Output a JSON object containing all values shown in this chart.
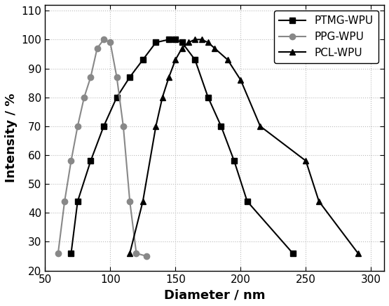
{
  "title": "",
  "xlabel": "Diameter / nm",
  "ylabel": "Intensity / %",
  "xlim": [
    50,
    310
  ],
  "ylim": [
    20,
    112
  ],
  "xticks": [
    50,
    100,
    150,
    200,
    250,
    300
  ],
  "yticks": [
    20,
    30,
    40,
    50,
    60,
    70,
    80,
    90,
    100,
    110
  ],
  "background_color": "#ffffff",
  "series": [
    {
      "label": "PTMG-WPU",
      "marker": "s",
      "color": "#000000",
      "x": [
        70,
        75,
        85,
        95,
        105,
        115,
        125,
        135,
        145,
        150,
        155,
        165,
        175,
        185,
        195,
        205,
        240
      ],
      "y": [
        26,
        44,
        58,
        70,
        80,
        87,
        93,
        99,
        100,
        100,
        99,
        93,
        80,
        70,
        58,
        44,
        26
      ]
    },
    {
      "label": "PPG-WPU",
      "marker": "o",
      "color": "#888888",
      "x": [
        60,
        65,
        70,
        75,
        80,
        85,
        90,
        95,
        100,
        105,
        110,
        115,
        120,
        128
      ],
      "y": [
        26,
        44,
        58,
        70,
        80,
        87,
        97,
        100,
        99,
        87,
        70,
        44,
        26,
        25
      ]
    },
    {
      "label": "PCL-WPU",
      "marker": "^",
      "color": "#000000",
      "x": [
        115,
        125,
        135,
        140,
        145,
        150,
        155,
        160,
        165,
        170,
        175,
        180,
        190,
        200,
        215,
        250,
        260,
        290
      ],
      "y": [
        26,
        44,
        70,
        80,
        87,
        93,
        97,
        99,
        100,
        100,
        99,
        97,
        93,
        86,
        70,
        58,
        44,
        26
      ]
    }
  ]
}
